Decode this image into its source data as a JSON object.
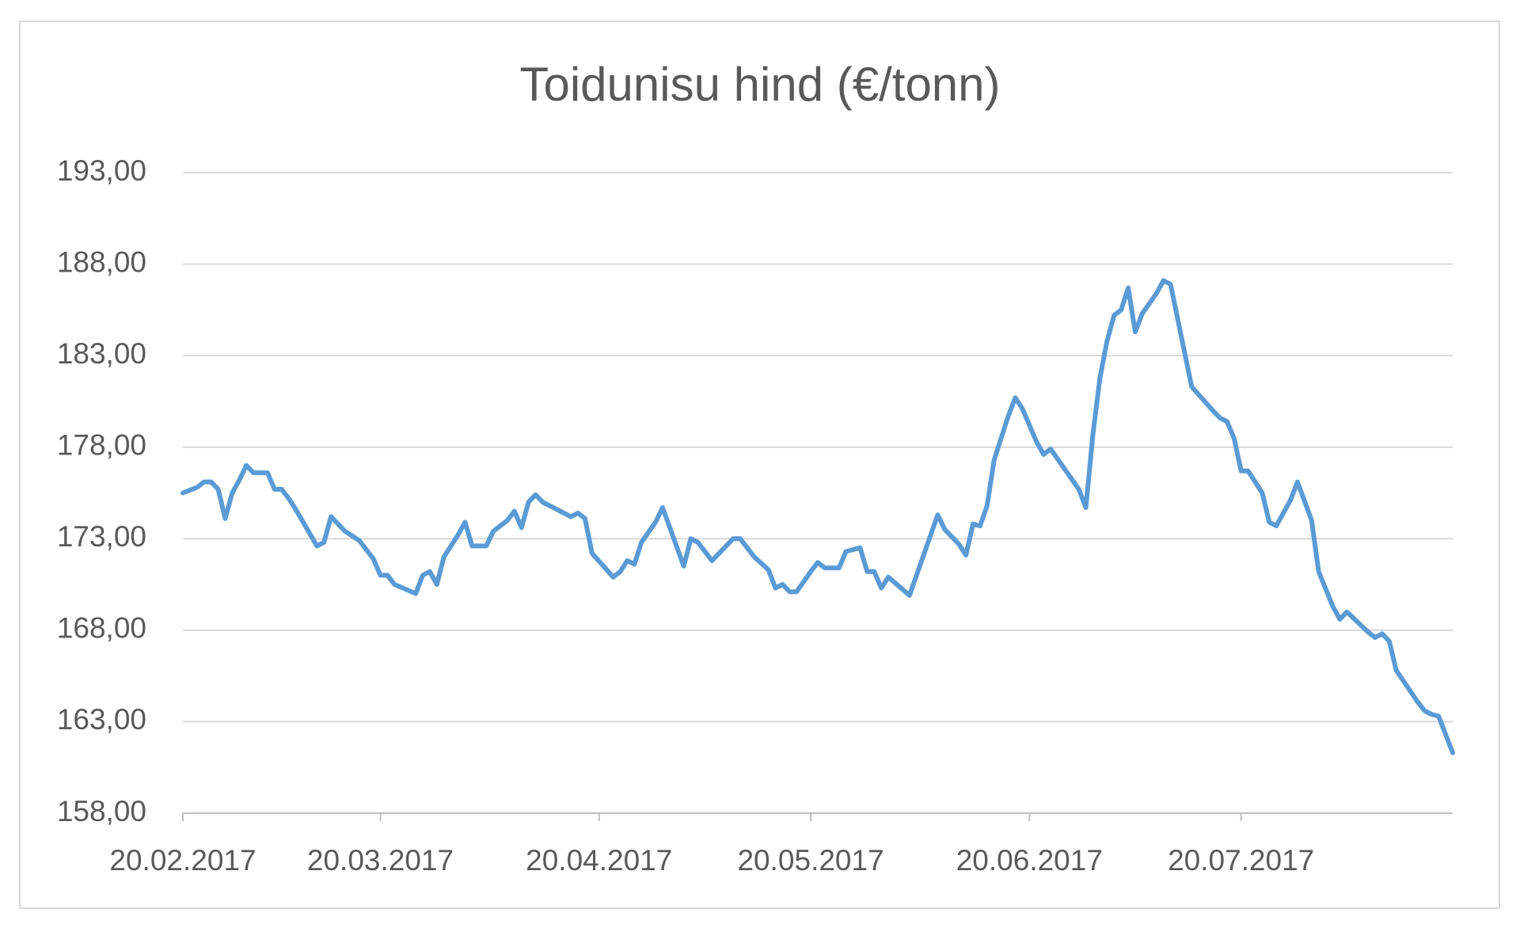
{
  "chart_data": {
    "type": "line",
    "title": "Toidunisu hind (€/tonn)",
    "x": [
      "20.02.2017",
      "22.02.2017",
      "23.02.2017",
      "24.02.2017",
      "25.02.2017",
      "26.02.2017",
      "27.02.2017",
      "28.02.2017",
      "01.03.2017",
      "02.03.2017",
      "04.03.2017",
      "05.03.2017",
      "06.03.2017",
      "07.03.2017",
      "08.03.2017",
      "11.03.2017",
      "12.03.2017",
      "13.03.2017",
      "15.03.2017",
      "17.03.2017",
      "18.03.2017",
      "19.03.2017",
      "20.03.2017",
      "21.03.2017",
      "22.03.2017",
      "25.03.2017",
      "26.03.2017",
      "27.03.2017",
      "28.03.2017",
      "29.03.2017",
      "31.03.2017",
      "01.04.2017",
      "02.04.2017",
      "04.04.2017",
      "05.04.2017",
      "07.04.2017",
      "08.04.2017",
      "09.04.2017",
      "10.04.2017",
      "11.04.2017",
      "12.04.2017",
      "16.04.2017",
      "17.04.2017",
      "18.04.2017",
      "19.04.2017",
      "22.04.2017",
      "23.04.2017",
      "24.04.2017",
      "25.04.2017",
      "26.04.2017",
      "28.04.2017",
      "29.04.2017",
      "02.05.2017",
      "03.05.2017",
      "04.05.2017",
      "06.05.2017",
      "08.05.2017",
      "09.05.2017",
      "10.05.2017",
      "12.05.2017",
      "14.05.2017",
      "15.05.2017",
      "16.05.2017",
      "17.05.2017",
      "18.05.2017",
      "20.05.2017",
      "21.05.2017",
      "22.05.2017",
      "24.05.2017",
      "25.05.2017",
      "27.05.2017",
      "28.05.2017",
      "29.05.2017",
      "30.05.2017",
      "31.05.2017",
      "03.06.2017",
      "07.06.2017",
      "08.06.2017",
      "10.06.2017",
      "11.06.2017",
      "12.06.2017",
      "13.06.2017",
      "14.06.2017",
      "15.06.2017",
      "17.06.2017",
      "18.06.2017",
      "19.06.2017",
      "21.06.2017",
      "22.06.2017",
      "23.06.2017",
      "27.06.2017",
      "28.06.2017",
      "29.06.2017",
      "30.06.2017",
      "01.07.2017",
      "02.07.2017",
      "03.07.2017",
      "04.07.2017",
      "05.07.2017",
      "06.07.2017",
      "08.07.2017",
      "09.07.2017",
      "10.07.2017",
      "13.07.2017",
      "16.07.2017",
      "17.07.2017",
      "18.07.2017",
      "19.07.2017",
      "20.07.2017",
      "21.07.2017",
      "23.07.2017",
      "24.07.2017",
      "25.07.2017",
      "27.07.2017",
      "28.07.2017",
      "30.07.2017",
      "31.07.2017",
      "02.08.2017",
      "03.08.2017",
      "04.08.2017",
      "07.08.2017",
      "08.08.2017",
      "09.08.2017",
      "10.08.2017",
      "11.08.2017",
      "14.08.2017",
      "15.08.2017",
      "16.08.2017",
      "17.08.2017",
      "19.08.2017"
    ],
    "values": [
      175.5,
      175.8,
      176.1,
      176.1,
      175.7,
      174.1,
      175.5,
      176.2,
      177,
      176.6,
      176.6,
      175.7,
      175.7,
      175.2,
      174.6,
      172.6,
      172.8,
      174.2,
      173.4,
      172.9,
      172.4,
      171.9,
      171,
      171,
      170.5,
      170,
      171,
      171.2,
      170.5,
      172,
      173.2,
      173.9,
      172.6,
      172.6,
      173.4,
      174,
      174.5,
      173.6,
      175,
      175.4,
      175,
      174.2,
      174.4,
      174.1,
      172.2,
      170.9,
      171.2,
      171.8,
      171.6,
      172.8,
      173.9,
      174.7,
      171.5,
      173,
      172.8,
      171.8,
      172.6,
      173,
      173,
      172,
      171.3,
      170.3,
      170.5,
      170.1,
      170.1,
      171.2,
      171.7,
      171.4,
      171.4,
      172.3,
      172.5,
      171.2,
      171.2,
      170.3,
      170.9,
      169.9,
      174.3,
      173.5,
      172.7,
      172.1,
      173.8,
      173.7,
      174.8,
      177.3,
      179.7,
      180.7,
      180.1,
      178.3,
      177.6,
      177.9,
      175.7,
      174.7,
      178.7,
      181.8,
      183.8,
      185.2,
      185.5,
      186.7,
      184.3,
      185.3,
      186.4,
      187.1,
      186.9,
      181.3,
      180,
      179.6,
      179.4,
      178.5,
      176.7,
      176.7,
      175.5,
      173.9,
      173.7,
      175.1,
      176.1,
      174,
      171.2,
      169.3,
      168.6,
      169,
      167.9,
      167.6,
      167.8,
      167.4,
      165.8,
      164.1,
      163.6,
      163.4,
      163.3,
      161.3
    ],
    "color": "#5b9bd5",
    "xlim": [
      "20.02.2017",
      "19.08.2017"
    ],
    "xticks": [
      "20.02.2017",
      "20.03.2017",
      "20.04.2017",
      "20.05.2017",
      "20.06.2017",
      "20.07.2017"
    ],
    "ylim": [
      158,
      193
    ],
    "yticks": [
      {
        "value": 158,
        "label": "158,00"
      },
      {
        "value": 163,
        "label": "163,00"
      },
      {
        "value": 168,
        "label": "168,00"
      },
      {
        "value": 173,
        "label": "173,00"
      },
      {
        "value": 178,
        "label": "178,00"
      },
      {
        "value": 183,
        "label": "183,00"
      },
      {
        "value": 188,
        "label": "188,00"
      },
      {
        "value": 193,
        "label": "193,00"
      }
    ],
    "grid": true
  }
}
